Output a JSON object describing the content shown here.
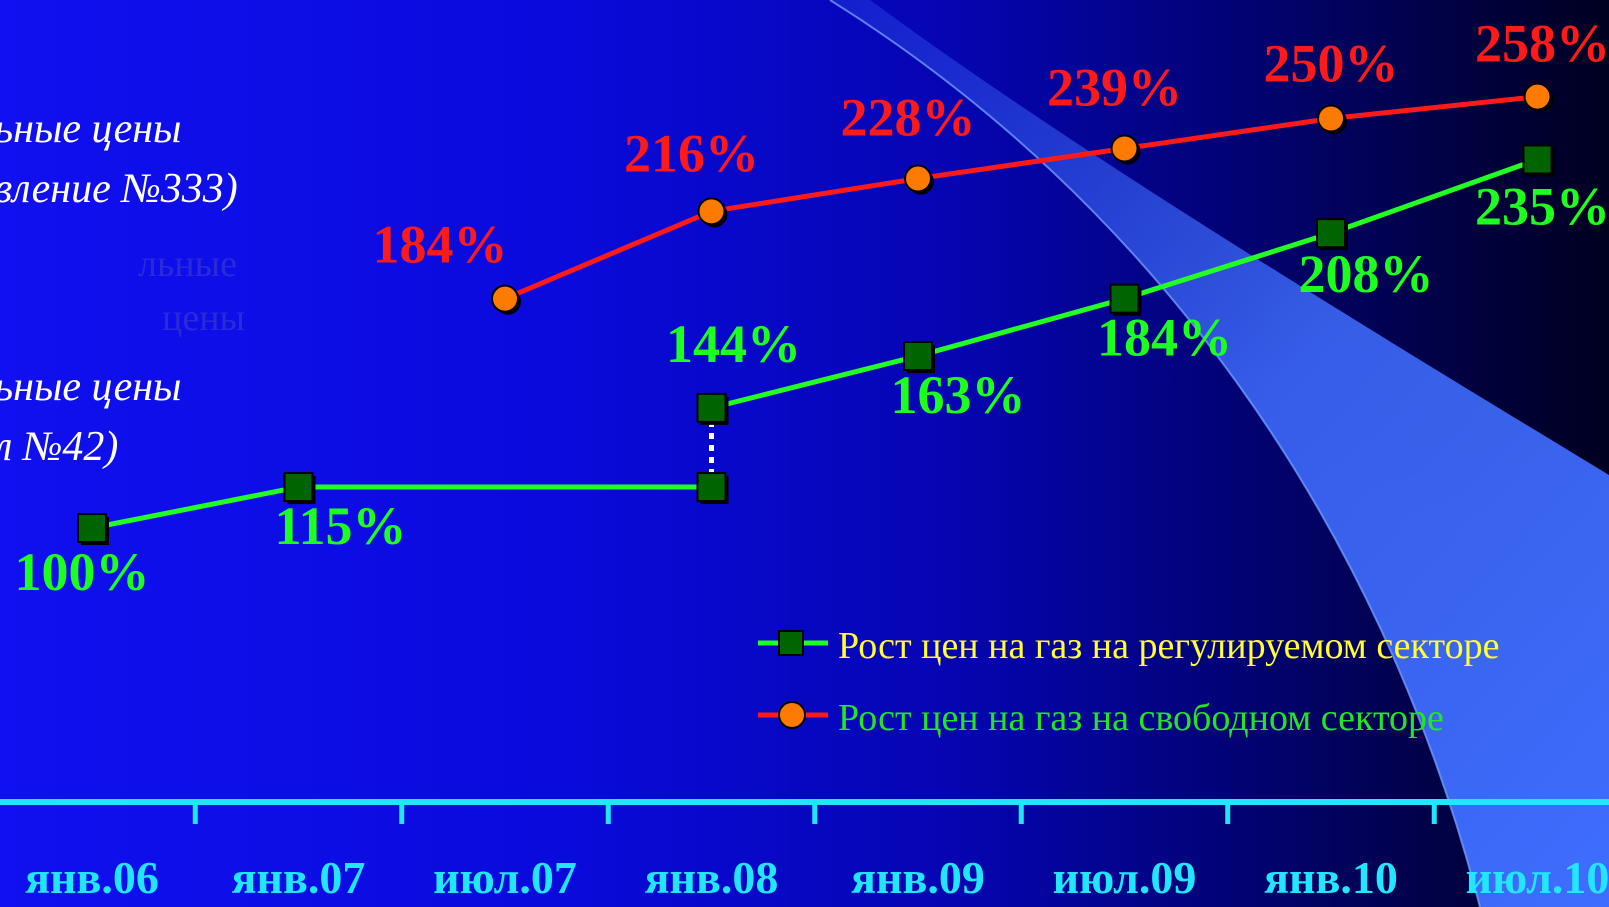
{
  "colors": {
    "regulated_line": "#22ff22",
    "regulated_marker": "#006400",
    "regulated_label": "#1dff1d",
    "free_line": "#ff1a1a",
    "free_marker": "#ff7a00",
    "free_label": "#ff1a1a",
    "axis": "#22e6ff",
    "legend_regulated_text": "#ffff33",
    "legend_free_text": "#22e622",
    "side_text": "#ffffff"
  },
  "side_text": {
    "top_line1": "ьные цены",
    "top_line2": "вление №333)",
    "ghost_line1": "льные",
    "ghost_line2": "цены",
    "bottom_line1": "ьные цены",
    "bottom_line2": "л №42)"
  },
  "legend": {
    "regulated": "Рост цен на газ на регулируемом секторе",
    "free": "Рост цен на газ на свободном секторе"
  },
  "chart_data": {
    "type": "line",
    "categories": [
      "янв.06",
      "янв.07",
      "июл.07",
      "янв.08",
      "янв.09",
      "июл.09",
      "янв.10",
      "июл.10"
    ],
    "series": [
      {
        "name": "Рост цен на газ на регулируемом секторе",
        "points": [
          {
            "x": "янв.06",
            "y": 100,
            "label": "100%"
          },
          {
            "x": "янв.07",
            "y": 115,
            "label": "115%"
          },
          {
            "x": "янв.08",
            "y": 115
          },
          {
            "x": "янв.08",
            "y": 144,
            "label": "144%"
          },
          {
            "x": "янв.09",
            "y": 163,
            "label": "163%"
          },
          {
            "x": "июл.09",
            "y": 184,
            "label": "184%"
          },
          {
            "x": "янв.10",
            "y": 208,
            "label": "208%"
          },
          {
            "x": "июл.10",
            "y": 235,
            "label": "235%"
          }
        ]
      },
      {
        "name": "Рост цен на газ на свободном секторе",
        "points": [
          {
            "x": "июл.07",
            "y": 184,
            "label": "184%"
          },
          {
            "x": "янв.08",
            "y": 216,
            "label": "216%"
          },
          {
            "x": "янв.09",
            "y": 228,
            "label": "228%"
          },
          {
            "x": "июл.09",
            "y": 239,
            "label": "239%"
          },
          {
            "x": "янв.10",
            "y": 250,
            "label": "250%"
          },
          {
            "x": "июл.10",
            "y": 258,
            "label": "258%"
          }
        ]
      }
    ],
    "grid": false,
    "legend_position": "bottom-right"
  }
}
